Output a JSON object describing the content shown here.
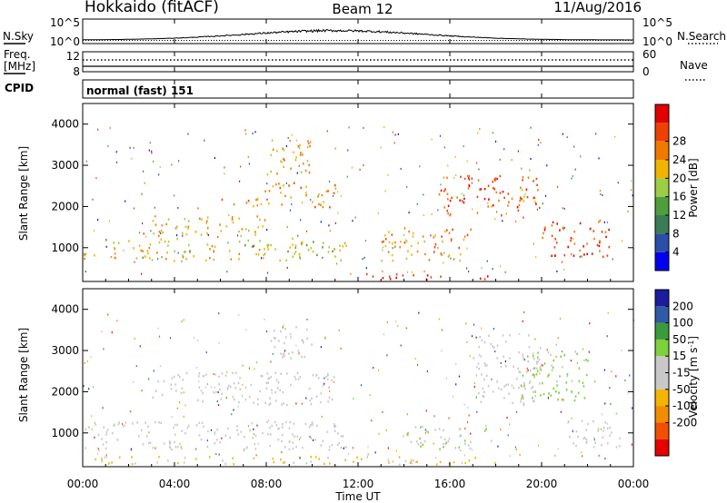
{
  "header": {
    "title": "Hokkaido (fitACF)",
    "beam": "Beam 12",
    "date": "11/Aug/2016"
  },
  "noise_panel": {
    "left_label": "N.Sky",
    "right_label": "N.Search",
    "left_ticks": [
      "10^5",
      "10^0"
    ],
    "right_ticks": [
      "10^5",
      "10^0"
    ]
  },
  "freq_panel": {
    "left_label_1": "Freq.",
    "left_label_2": "[MHz]",
    "left_ticks": [
      "12",
      "8"
    ],
    "right_label": "Nave",
    "right_ticks": [
      "60",
      "0"
    ]
  },
  "cpid_panel": {
    "label": "CPID",
    "text": "normal (fast) 151"
  },
  "time_axis": {
    "xlabel": "Time UT",
    "ticks": [
      "00:00",
      "04:00",
      "08:00",
      "12:00",
      "16:00",
      "20:00",
      "00:00"
    ]
  },
  "colors": {
    "power_scale": [
      "#0000ee",
      "#2b4ea8",
      "#3a7d55",
      "#4f9e3c",
      "#9ccd45",
      "#f0b400",
      "#f07a00",
      "#ee4000",
      "#e00000"
    ],
    "velocity_scale": [
      "#e60000",
      "#f25000",
      "#f28c00",
      "#f5b400",
      "#c8c8c8",
      "#c8c8c8",
      "#7ed03c",
      "#3b9a3b",
      "#2e5aa8",
      "#1c1ca0"
    ]
  },
  "chart_data": [
    {
      "type": "heatmap",
      "title": "",
      "xlabel": "",
      "ylabel": "Slant Range [km]",
      "xlim": [
        0,
        24
      ],
      "ylim": [
        180,
        4500
      ],
      "yticks": [
        "1000",
        "2000",
        "3000",
        "4000"
      ],
      "colorbar": {
        "label": "Power [dB]",
        "ticks": [
          "4",
          "8",
          "12",
          "16",
          "20",
          "24",
          "28"
        ],
        "range": [
          0,
          32
        ]
      },
      "features": [
        {
          "t0": 0.0,
          "t1": 11.5,
          "r0": 700,
          "r1": 1250,
          "value": 18
        },
        {
          "t0": 3.0,
          "t1": 8.0,
          "r0": 1300,
          "r1": 1800,
          "value": 20
        },
        {
          "t0": 6.0,
          "t1": 7.5,
          "r0": 2000,
          "r1": 2200,
          "value": 26
        },
        {
          "t0": 7.5,
          "t1": 11.0,
          "r0": 2000,
          "r1": 2600,
          "value": 22
        },
        {
          "t0": 8.0,
          "t1": 10.0,
          "r0": 2800,
          "r1": 3700,
          "value": 20
        },
        {
          "t0": 12.0,
          "t1": 18.0,
          "r0": 250,
          "r1": 400,
          "value": 30
        },
        {
          "t0": 13.0,
          "t1": 17.0,
          "r0": 700,
          "r1": 1500,
          "value": 22
        },
        {
          "t0": 15.5,
          "t1": 20.0,
          "r0": 1800,
          "r1": 2800,
          "value": 26
        },
        {
          "t0": 20.0,
          "t1": 23.0,
          "r0": 800,
          "r1": 1700,
          "value": 27
        }
      ]
    },
    {
      "type": "heatmap",
      "title": "",
      "xlabel": "Time UT",
      "ylabel": "Slant Range [km]",
      "xlim": [
        0,
        24
      ],
      "ylim": [
        180,
        4500
      ],
      "yticks": [
        "1000",
        "2000",
        "3000",
        "4000"
      ],
      "colorbar": {
        "label": "Velocity [m s^-1]",
        "ticks": [
          "200",
          "100",
          "50",
          "15",
          "-15",
          "-50",
          "-100",
          "-200"
        ],
        "range": [
          -250,
          250
        ]
      },
      "features": [
        {
          "t0": 0.0,
          "t1": 11.5,
          "r0": 600,
          "r1": 1300,
          "value": 0
        },
        {
          "t0": 3.0,
          "t1": 11.0,
          "r0": 1700,
          "r1": 2500,
          "value": 0
        },
        {
          "t0": 8.0,
          "t1": 10.0,
          "r0": 2800,
          "r1": 3600,
          "value": 0
        },
        {
          "t0": 0.5,
          "t1": 18.0,
          "r0": 250,
          "r1": 450,
          "value": -60
        },
        {
          "t0": 14.0,
          "t1": 18.0,
          "r0": 600,
          "r1": 1200,
          "value": 40
        },
        {
          "t0": 17.0,
          "t1": 20.0,
          "r0": 1700,
          "r1": 3400,
          "value": 0
        },
        {
          "t0": 19.0,
          "t1": 22.0,
          "r0": 1800,
          "r1": 3000,
          "value": 60
        },
        {
          "t0": 21.0,
          "t1": 23.5,
          "r0": 600,
          "r1": 1400,
          "value": 0
        }
      ]
    }
  ]
}
